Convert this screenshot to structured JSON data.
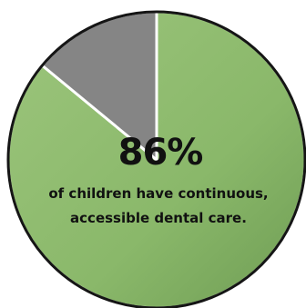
{
  "chart_data": {
    "type": "pie",
    "slices": [
      {
        "label": "continuous, accessible dental care",
        "value": 86,
        "color": "#8db86e"
      },
      {
        "label": "",
        "value": 14,
        "color": "#858585"
      }
    ],
    "annotation": {
      "value_label": "86%",
      "caption_line1": "of children have continuous,",
      "caption_line2": "accessible dental care."
    }
  }
}
